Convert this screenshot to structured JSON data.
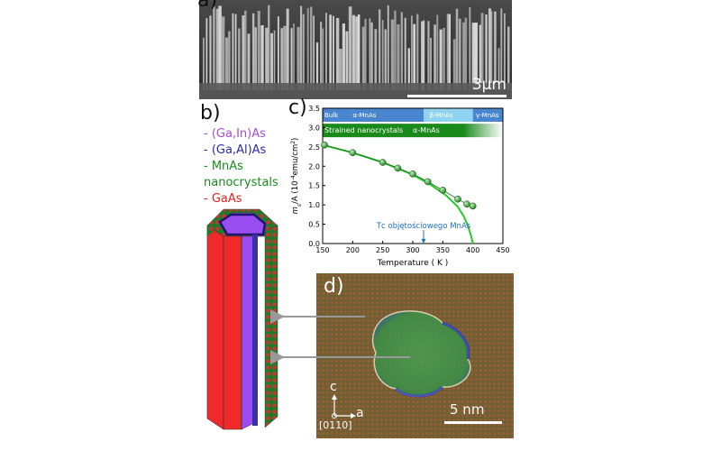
{
  "panels": {
    "a": {
      "label": "a)",
      "scale_bar": "3µm"
    },
    "b": {
      "label": "b)",
      "legend": [
        {
          "text": "- (Ga,In)As",
          "color": "#a64dd9"
        },
        {
          "text": "- (Ga,Al)As",
          "color": "#2a2ab0"
        },
        {
          "text": "- MnAs",
          "color": "#1a8a1a"
        },
        {
          "text": "nanocrystals",
          "color": "#1a8a1a"
        },
        {
          "text": "- GaAs",
          "color": "#e02020"
        }
      ]
    },
    "c": {
      "label": "c)",
      "bulk_band": {
        "label": "Bulk",
        "phases": [
          "α-MnAs",
          "β-MnAs",
          "γ-MnAs"
        ]
      },
      "strained_band": {
        "label": "Strained nanocrystals",
        "phase": "α-MnAs"
      },
      "annotation": "Tᴄ objętościowego MnAs",
      "ylabel_main": "m",
      "ylabel_sub": "s",
      "ylabel_rest": "/A  (10",
      "ylabel_exp": "-4",
      "ylabel_unit": "emu/cm",
      "ylabel_exp2": "2",
      "ylabel_close": ")",
      "xlabel": "Temperature  ( K )"
    },
    "d": {
      "label": "d)",
      "axis_c": "c",
      "axis_a": "a",
      "zone_axis": "[0110]",
      "scale_bar": "5 nm"
    }
  },
  "colors": {
    "bulk_alpha": "#4a86d0",
    "bulk_beta": "#8fd3f0",
    "bulk_gamma": "#4a86d0",
    "strained": "#1a8a1a",
    "curve": "#22cc22",
    "points": "#2aa02a",
    "annotation": "#2070c0",
    "gaas": "#f02a2a",
    "gainas": "#9a4df0",
    "gaalas": "#3b2fa8",
    "mnas": "#1f7a2a"
  },
  "chart_data": {
    "type": "scatter",
    "xlim": [
      150,
      450
    ],
    "ylim": [
      0.0,
      3.5
    ],
    "xticks": [
      150,
      200,
      250,
      300,
      350,
      400,
      450
    ],
    "yticks": [
      0.0,
      0.5,
      1.0,
      1.5,
      2.0,
      2.5,
      3.0,
      3.5
    ],
    "xtick_labels": [
      "150",
      "200",
      "250",
      "300",
      "350",
      "400",
      "450"
    ],
    "ytick_labels": [
      "0.0",
      "0.5",
      "1.0",
      "1.5",
      "2.0",
      "2.5",
      "3.0",
      "3.5"
    ],
    "points": {
      "x": [
        153,
        200,
        250,
        275,
        300,
        325,
        350,
        375,
        390,
        400
      ],
      "y": [
        2.55,
        2.35,
        2.1,
        1.95,
        1.8,
        1.6,
        1.38,
        1.15,
        1.02,
        0.97
      ]
    },
    "fit_curve": {
      "x": [
        150,
        200,
        250,
        300,
        330,
        355,
        375,
        385,
        392,
        397,
        400
      ],
      "y": [
        2.55,
        2.35,
        2.1,
        1.78,
        1.52,
        1.25,
        0.95,
        0.7,
        0.45,
        0.2,
        0.0
      ]
    },
    "bulk_phase_bounds": [
      150,
      318,
      400,
      450
    ],
    "strained_end": 400,
    "annotation_x": 318
  }
}
